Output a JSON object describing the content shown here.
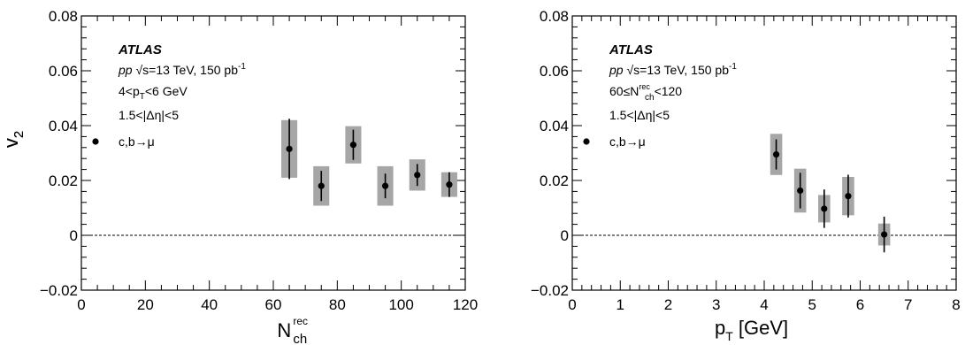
{
  "chart_data": [
    {
      "type": "scatter",
      "xlabel": "N",
      "xlabel_sup": "rec",
      "xlabel_sub": "ch",
      "ylabel": "v",
      "ylabel_sub": "2",
      "xlim": [
        0,
        120
      ],
      "ylim": [
        -0.02,
        0.08
      ],
      "xticks": [
        0,
        20,
        40,
        60,
        80,
        100,
        120
      ],
      "xtick_labels": [
        "0",
        "20",
        "40",
        "60",
        "80",
        "100",
        "120"
      ],
      "yticks": [
        -0.02,
        0,
        0.02,
        0.04,
        0.06,
        0.08
      ],
      "ytick_labels": [
        "−0.02",
        "0",
        "0.02",
        "0.04",
        "0.06",
        "0.08"
      ],
      "annotations": {
        "experiment": "ATLAS",
        "line1_italic": "pp",
        "line1_rest": "√s=13 TeV, 150 pb",
        "line1_sup": "-1",
        "line2_a": "4<p",
        "line2_sub": "T",
        "line2_b": "<6 GeV",
        "line3": "1.5<|Δη|<5"
      },
      "legend": {
        "label": "c,b→μ",
        "position": "top-left"
      },
      "reference_line": 0,
      "series": [
        {
          "name": "c,b→μ",
          "x": [
            65,
            75,
            85,
            95,
            105,
            115
          ],
          "y": [
            0.0315,
            0.018,
            0.033,
            0.018,
            0.022,
            0.0185
          ],
          "stat_err": [
            0.011,
            0.0055,
            0.0055,
            0.0045,
            0.004,
            0.0045
          ],
          "syst_err": [
            0.0105,
            0.0072,
            0.0068,
            0.0072,
            0.0057,
            0.0045
          ],
          "syst_halfwidth": 2.5
        }
      ]
    },
    {
      "type": "scatter",
      "xlabel": "p",
      "xlabel_sub": "T",
      "xlabel_rest": " [GeV]",
      "ylabel": "v",
      "ylabel_sub": "2",
      "xlim": [
        0,
        8
      ],
      "ylim": [
        -0.02,
        0.08
      ],
      "xticks": [
        0,
        1,
        2,
        3,
        4,
        5,
        6,
        7,
        8
      ],
      "xtick_labels": [
        "0",
        "1",
        "2",
        "3",
        "4",
        "5",
        "6",
        "7",
        "8"
      ],
      "yticks": [
        -0.02,
        0,
        0.02,
        0.04,
        0.06,
        0.08
      ],
      "ytick_labels": [
        "−0.02",
        "0",
        "0.02",
        "0.04",
        "0.06",
        "0.08"
      ],
      "annotations": {
        "experiment": "ATLAS",
        "line1_italic": "pp",
        "line1_rest": "√s=13 TeV, 150 pb",
        "line1_sup": "-1",
        "line2_a": "60≤N",
        "line2_sup": "rec",
        "line2_sub": "ch",
        "line2_b": "<120",
        "line3": "1.5<|Δη|<5"
      },
      "legend": {
        "label": "c,b→μ",
        "position": "top-left"
      },
      "reference_line": 0,
      "series": [
        {
          "name": "c,b→μ",
          "x": [
            4.25,
            4.75,
            5.25,
            5.75,
            6.5
          ],
          "y": [
            0.0295,
            0.0163,
            0.0097,
            0.0143,
            0.0003
          ],
          "stat_err": [
            0.0055,
            0.0065,
            0.007,
            0.0078,
            0.0065
          ],
          "syst_err": [
            0.0075,
            0.008,
            0.005,
            0.007,
            0.004
          ],
          "syst_halfwidth": 0.125
        }
      ]
    }
  ]
}
